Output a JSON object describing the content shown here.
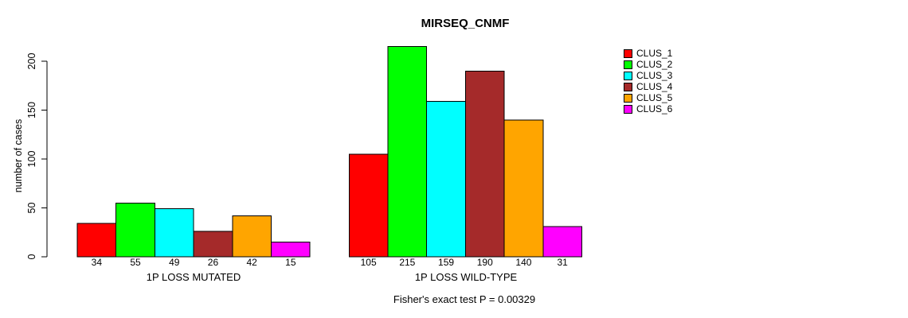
{
  "chart_data": {
    "type": "bar",
    "title": "MIRSEQ_CNMF",
    "ylabel": "number of cases",
    "xlabel": "",
    "footer": "Fisher's exact test P = 0.00329",
    "ylim": [
      0,
      200
    ],
    "yticks": [
      0,
      50,
      100,
      150,
      200
    ],
    "grid": false,
    "legend_position": "right",
    "bar_outline": "#000000",
    "categories": [
      "1P LOSS MUTATED",
      "1P LOSS WILD-TYPE"
    ],
    "series": [
      {
        "name": "CLUS_1",
        "color": "#FF0000",
        "values": [
          34,
          105
        ]
      },
      {
        "name": "CLUS_2",
        "color": "#00FF00",
        "values": [
          55,
          215
        ]
      },
      {
        "name": "CLUS_3",
        "color": "#00FFFF",
        "values": [
          49,
          159
        ]
      },
      {
        "name": "CLUS_4",
        "color": "#A52A2A",
        "values": [
          26,
          190
        ]
      },
      {
        "name": "CLUS_5",
        "color": "#FFA500",
        "values": [
          42,
          140
        ]
      },
      {
        "name": "CLUS_6",
        "color": "#FF00FF",
        "values": [
          15,
          31
        ]
      }
    ]
  }
}
